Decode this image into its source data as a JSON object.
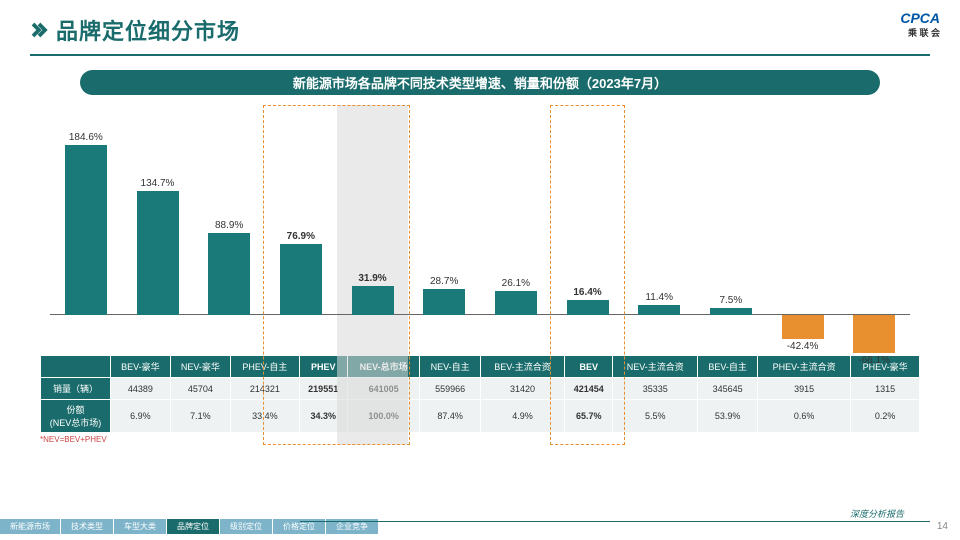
{
  "header": {
    "title": "品牌定位细分市场",
    "logo_main": "CPCA",
    "logo_sub": "乘 联 会"
  },
  "banner": "新能源市场各品牌不同技术类型增速、销量和份额（2023年7月）",
  "chart": {
    "ymax": 185,
    "ymin_neg": 70,
    "bar_color_pos": "#1a7a7a",
    "bar_color_neg": "#e8902f",
    "highlight": {
      "col": 4,
      "bg": "#d9d9d9"
    },
    "dash_boxes": [
      {
        "start": 3,
        "end": 4
      },
      {
        "start": 7,
        "end": 7
      }
    ],
    "bars": [
      {
        "label": "184.6%",
        "v": 184.6,
        "neg": false
      },
      {
        "label": "134.7%",
        "v": 134.7,
        "neg": false
      },
      {
        "label": "88.9%",
        "v": 88.9,
        "neg": false
      },
      {
        "label": "76.9%",
        "v": 76.9,
        "neg": false,
        "bold": true
      },
      {
        "label": "31.9%",
        "v": 31.9,
        "neg": false,
        "bold": true
      },
      {
        "label": "28.7%",
        "v": 28.7,
        "neg": false
      },
      {
        "label": "26.1%",
        "v": 26.1,
        "neg": false
      },
      {
        "label": "16.4%",
        "v": 16.4,
        "neg": false,
        "bold": true
      },
      {
        "label": "11.4%",
        "v": 11.4,
        "neg": false
      },
      {
        "label": "7.5%",
        "v": 7.5,
        "neg": false
      },
      {
        "label": "-42.4%",
        "v": 42.4,
        "neg": true
      },
      {
        "label": "-66.1%",
        "v": 66.1,
        "neg": true
      }
    ]
  },
  "table": {
    "headers": [
      "BEV-豪华",
      "NEV-豪华",
      "PHEV-自主",
      "PHEV",
      "NEV-总市场",
      "NEV-自主",
      "BEV-主流合资",
      "BEV",
      "NEV-主流合资",
      "BEV-自主",
      "PHEV-主流合资",
      "PHEV-豪华"
    ],
    "bold_cols": [
      3,
      4,
      7
    ],
    "rows": [
      {
        "head": "销量（辆）",
        "cells": [
          "44389",
          "45704",
          "214321",
          "219551",
          "641005",
          "559966",
          "31420",
          "421454",
          "35335",
          "345645",
          "3915",
          "1315"
        ]
      },
      {
        "head": "份额\n(NEV总市场)",
        "cells": [
          "6.9%",
          "7.1%",
          "33.4%",
          "34.3%",
          "100.0%",
          "87.4%",
          "4.9%",
          "65.7%",
          "5.5%",
          "53.9%",
          "0.6%",
          "0.2%"
        ]
      }
    ]
  },
  "note": "*NEV=BEV+PHEV",
  "footer": {
    "pills": [
      "新能源市场",
      "技术类型",
      "车型大类",
      "品牌定位",
      "级别定位",
      "价格定位",
      "企业竞争"
    ],
    "active": 3,
    "right_text": "深度分析报告",
    "page": "14"
  }
}
